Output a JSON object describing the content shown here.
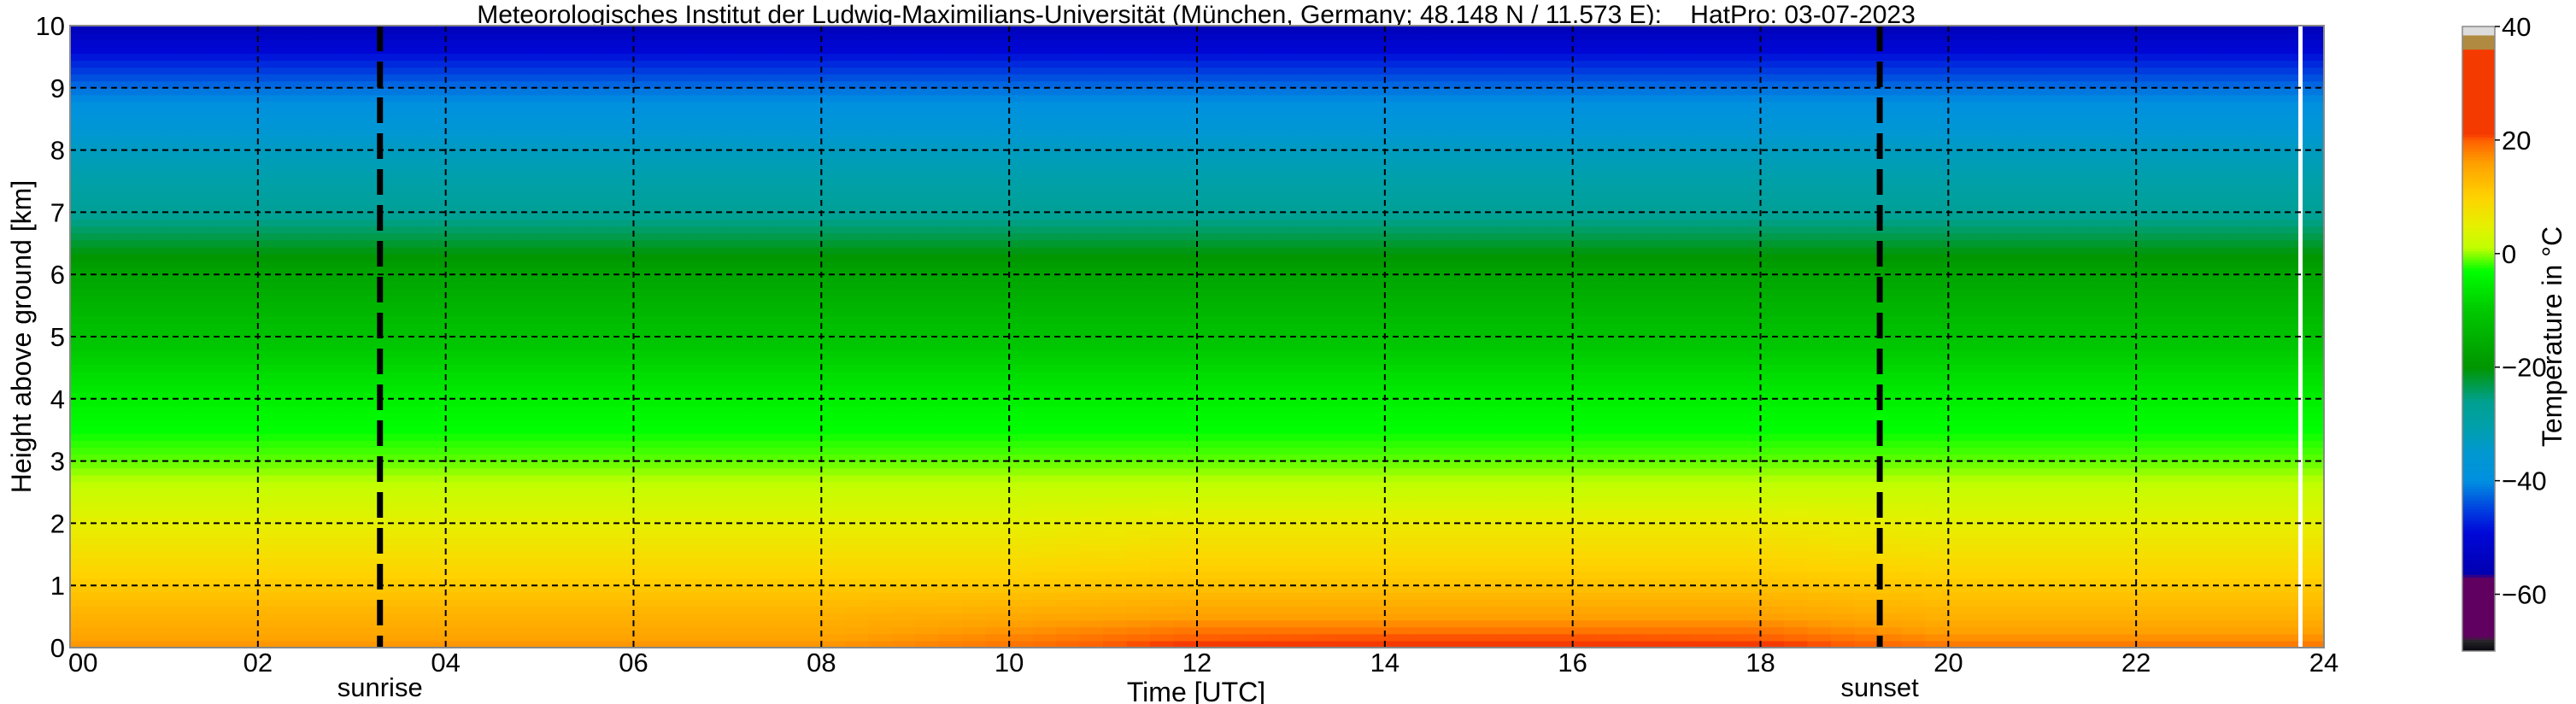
{
  "chart_data": {
    "type": "heatmap",
    "title": "Meteorologisches Institut der Ludwig-Maximilians-Universität (München, Germany; 48.148 N / 11.573 E):    HatPro: 03-07-2023",
    "xlabel": "Time [UTC]",
    "ylabel": "Height above ground [km]",
    "colorbar_label": "Temperature in $^\\circ$C",
    "colorbar_label_display": "Temperature in °C",
    "xlim": [
      0,
      24
    ],
    "ylim": [
      0,
      10
    ],
    "clim": [
      -70,
      40
    ],
    "grid": true,
    "x_ticks": [
      "00",
      "02",
      "04",
      "06",
      "08",
      "10",
      "12",
      "14",
      "16",
      "18",
      "20",
      "22",
      "24"
    ],
    "y_ticks": [
      "0",
      "1",
      "2",
      "3",
      "4",
      "5",
      "6",
      "7",
      "8",
      "9",
      "10"
    ],
    "colorbar_ticks": [
      "40",
      "20",
      "0",
      "−20",
      "−40",
      "−60"
    ],
    "annotations": {
      "sunrise": {
        "label": "sunrise",
        "time": 3.3
      },
      "sunset": {
        "label": "sunset",
        "time": 19.27
      }
    },
    "data_gap_time": 23.75,
    "times": [
      0,
      2,
      4,
      6,
      8,
      10,
      12,
      14,
      16,
      18,
      20,
      22,
      24
    ],
    "heights": [
      0,
      0.25,
      0.5,
      1,
      1.5,
      2,
      2.5,
      3,
      4,
      5,
      6,
      6.5,
      7,
      8,
      9,
      9.5,
      10
    ],
    "temperature": [
      [
        17,
        15,
        14,
        11,
        8,
        5,
        2,
        -1,
        -5,
        -11,
        -17,
        -22,
        -27,
        -33,
        -42,
        -48,
        -55
      ],
      [
        17,
        15,
        14,
        11,
        8,
        5,
        2,
        -1,
        -5,
        -11,
        -17,
        -22,
        -27,
        -33,
        -42,
        -48,
        -55
      ],
      [
        17,
        15,
        14,
        11,
        8,
        5,
        2,
        -1,
        -5,
        -11,
        -17,
        -22,
        -27,
        -33,
        -42,
        -48,
        -55
      ],
      [
        17,
        15,
        14,
        11,
        8,
        5,
        2,
        -1,
        -5,
        -11,
        -17,
        -22,
        -27,
        -33,
        -42,
        -48,
        -55
      ],
      [
        17,
        15,
        14,
        11,
        8,
        5,
        2,
        -1,
        -5,
        -11,
        -17,
        -22,
        -27,
        -33,
        -42,
        -48,
        -55
      ],
      [
        19,
        17,
        15,
        11,
        8,
        5,
        2,
        -1,
        -5,
        -11,
        -17,
        -22,
        -27,
        -33,
        -42,
        -48,
        -55
      ],
      [
        22,
        19,
        16,
        12,
        9,
        6,
        2,
        -1,
        -5,
        -11,
        -17,
        -22,
        -27,
        -33,
        -42,
        -48,
        -55
      ],
      [
        23,
        19,
        16,
        12,
        9,
        6,
        2,
        -1,
        -5,
        -11,
        -17,
        -22,
        -27,
        -33,
        -42,
        -48,
        -55
      ],
      [
        23,
        19,
        16,
        12,
        9,
        6,
        2,
        -1,
        -5,
        -11,
        -17,
        -22,
        -27,
        -33,
        -42,
        -48,
        -55
      ],
      [
        22,
        19,
        16,
        12,
        9,
        6,
        2,
        -1,
        -5,
        -11,
        -17,
        -22,
        -27,
        -33,
        -42,
        -48,
        -55
      ],
      [
        19,
        16,
        14,
        11,
        8,
        5,
        2,
        -1,
        -5,
        -11,
        -17,
        -22,
        -27,
        -33,
        -42,
        -48,
        -55
      ],
      [
        19,
        16,
        14,
        11,
        8,
        5,
        2,
        -1,
        -5,
        -11,
        -17,
        -22,
        -27,
        -33,
        -42,
        -48,
        -55
      ],
      [
        19,
        16,
        14,
        11,
        8,
        5,
        2,
        -1,
        -5,
        -11,
        -17,
        -22,
        -27,
        -33,
        -42,
        -48,
        -55
      ]
    ],
    "colormap": [
      [
        -70,
        "#05050f"
      ],
      [
        -68,
        "#2a2a2a"
      ],
      [
        -67.5,
        "#600060"
      ],
      [
        -57,
        "#600060"
      ],
      [
        -56.5,
        "#0000b0"
      ],
      [
        -49,
        "#0008d8"
      ],
      [
        -45,
        "#0040e0"
      ],
      [
        -40,
        "#0090e0"
      ],
      [
        -35,
        "#0098d0"
      ],
      [
        -30,
        "#00a0a8"
      ],
      [
        -26,
        "#00a090"
      ],
      [
        -20,
        "#009600"
      ],
      [
        -10,
        "#00c800"
      ],
      [
        -3,
        "#00ff00"
      ],
      [
        1,
        "#c0ff00"
      ],
      [
        5,
        "#e6f000"
      ],
      [
        10,
        "#ffd200"
      ],
      [
        16,
        "#ffa000"
      ],
      [
        20,
        "#ff6000"
      ],
      [
        21,
        "#f53a00"
      ],
      [
        36,
        "#f53a00"
      ],
      [
        36.1,
        "#b08a40"
      ],
      [
        38.3,
        "#b08a40"
      ],
      [
        38.4,
        "#dcdcdc"
      ],
      [
        40,
        "#dcdcdc"
      ]
    ]
  }
}
